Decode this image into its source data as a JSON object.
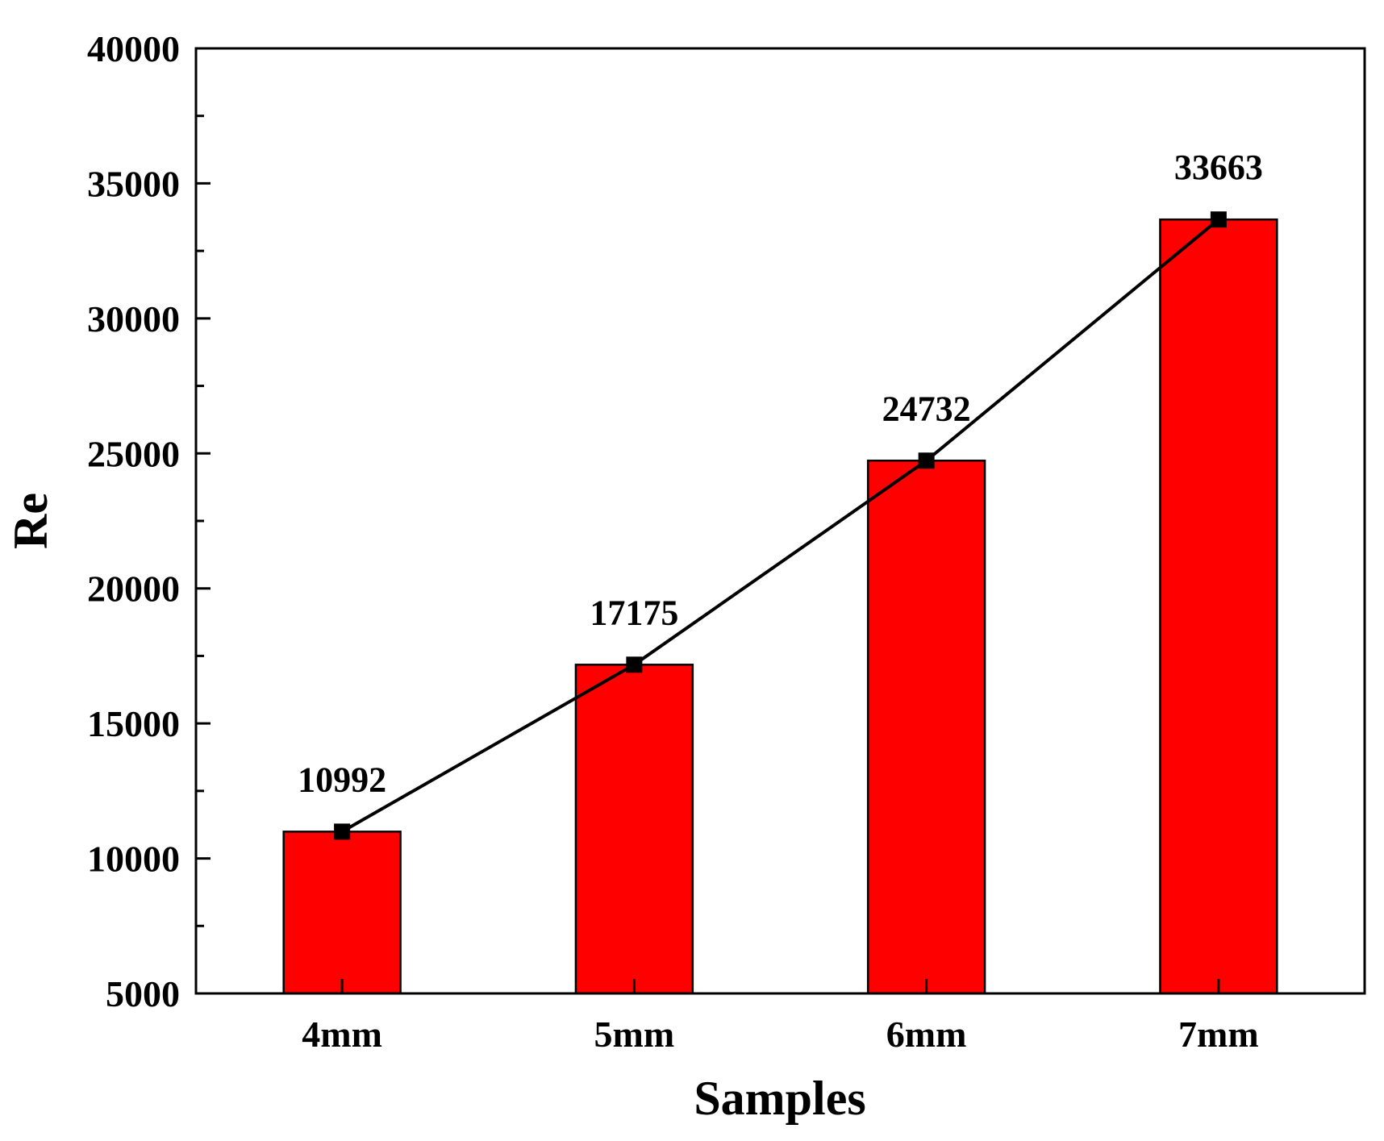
{
  "chart_data": {
    "type": "bar",
    "categories": [
      "4mm",
      "5mm",
      "6mm",
      "7mm"
    ],
    "values": [
      10992,
      17175,
      24732,
      33663
    ],
    "data_labels": [
      "10992",
      "17175",
      "24732",
      "33663"
    ],
    "overlay_line": true,
    "xlabel": "Samples",
    "ylabel": "Re",
    "ylim": [
      5000,
      40000
    ],
    "yticks": [
      5000,
      10000,
      15000,
      20000,
      25000,
      30000,
      35000,
      40000
    ],
    "ytick_labels": [
      "5000",
      "10000",
      "15000",
      "20000",
      "25000",
      "30000",
      "35000",
      "40000"
    ],
    "bar_color": "#ff0000",
    "line_color": "#000000",
    "grid": false
  }
}
